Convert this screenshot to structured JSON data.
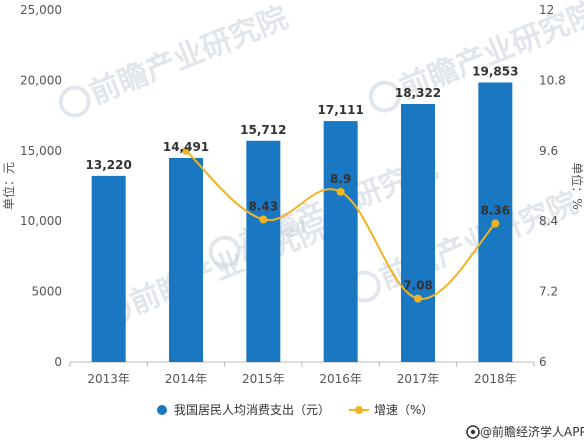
{
  "chart_data": {
    "type": "bar",
    "categories": [
      "2013年",
      "2014年",
      "2015年",
      "2016年",
      "2017年",
      "2018年"
    ],
    "series": [
      {
        "name": "我国居民人均消费支出（元）",
        "type": "bar",
        "axis": "left",
        "values": [
          13220,
          14491,
          15712,
          17111,
          18322,
          19853
        ],
        "labels": [
          "13,220",
          "14,491",
          "15,712",
          "17,111",
          "18,322",
          "19,853"
        ]
      },
      {
        "name": "增速（%）",
        "type": "line",
        "axis": "right",
        "values": [
          null,
          9.6,
          8.43,
          8.9,
          7.08,
          8.36
        ],
        "labels": [
          "",
          "",
          "8.43",
          "8.9",
          "7.08",
          "8.36"
        ]
      }
    ],
    "ylabel": "单位：元",
    "ylabel_right": "单位：%",
    "ylim": [
      0,
      25000
    ],
    "ylim_right": [
      6,
      12
    ],
    "yticks": [
      "0",
      "5000",
      "10,000",
      "15,000",
      "20,000",
      "25,000"
    ],
    "yticks_right": [
      "6",
      "7.2",
      "8.4",
      "9.6",
      "10.8",
      "12"
    ],
    "legend_position": "bottom",
    "grid": false
  },
  "colors": {
    "bar": "#1a78c2",
    "line": "#f0b323"
  },
  "watermark": {
    "text": "前瞻产业研究院"
  },
  "source": {
    "text": "@前瞻经济学人APP",
    "icon": "qianzhan-logo-icon"
  }
}
